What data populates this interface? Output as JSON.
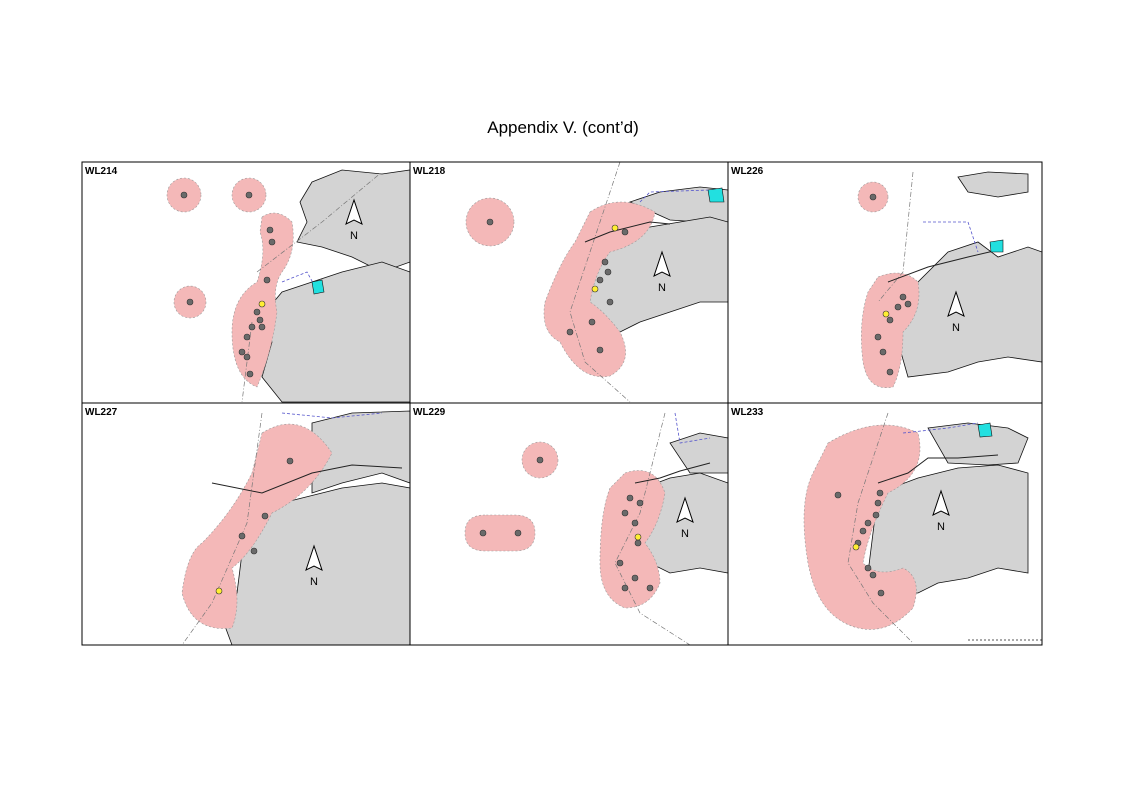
{
  "title": "Appendix V.  (cont’d)",
  "panels": [
    {
      "label": "WL214",
      "north": "N"
    },
    {
      "label": "WL218",
      "north": "N"
    },
    {
      "label": "WL226",
      "north": "N"
    },
    {
      "label": "WL227",
      "north": "N"
    },
    {
      "label": "WL229",
      "north": "N"
    },
    {
      "label": "WL233",
      "north": "N"
    }
  ]
}
